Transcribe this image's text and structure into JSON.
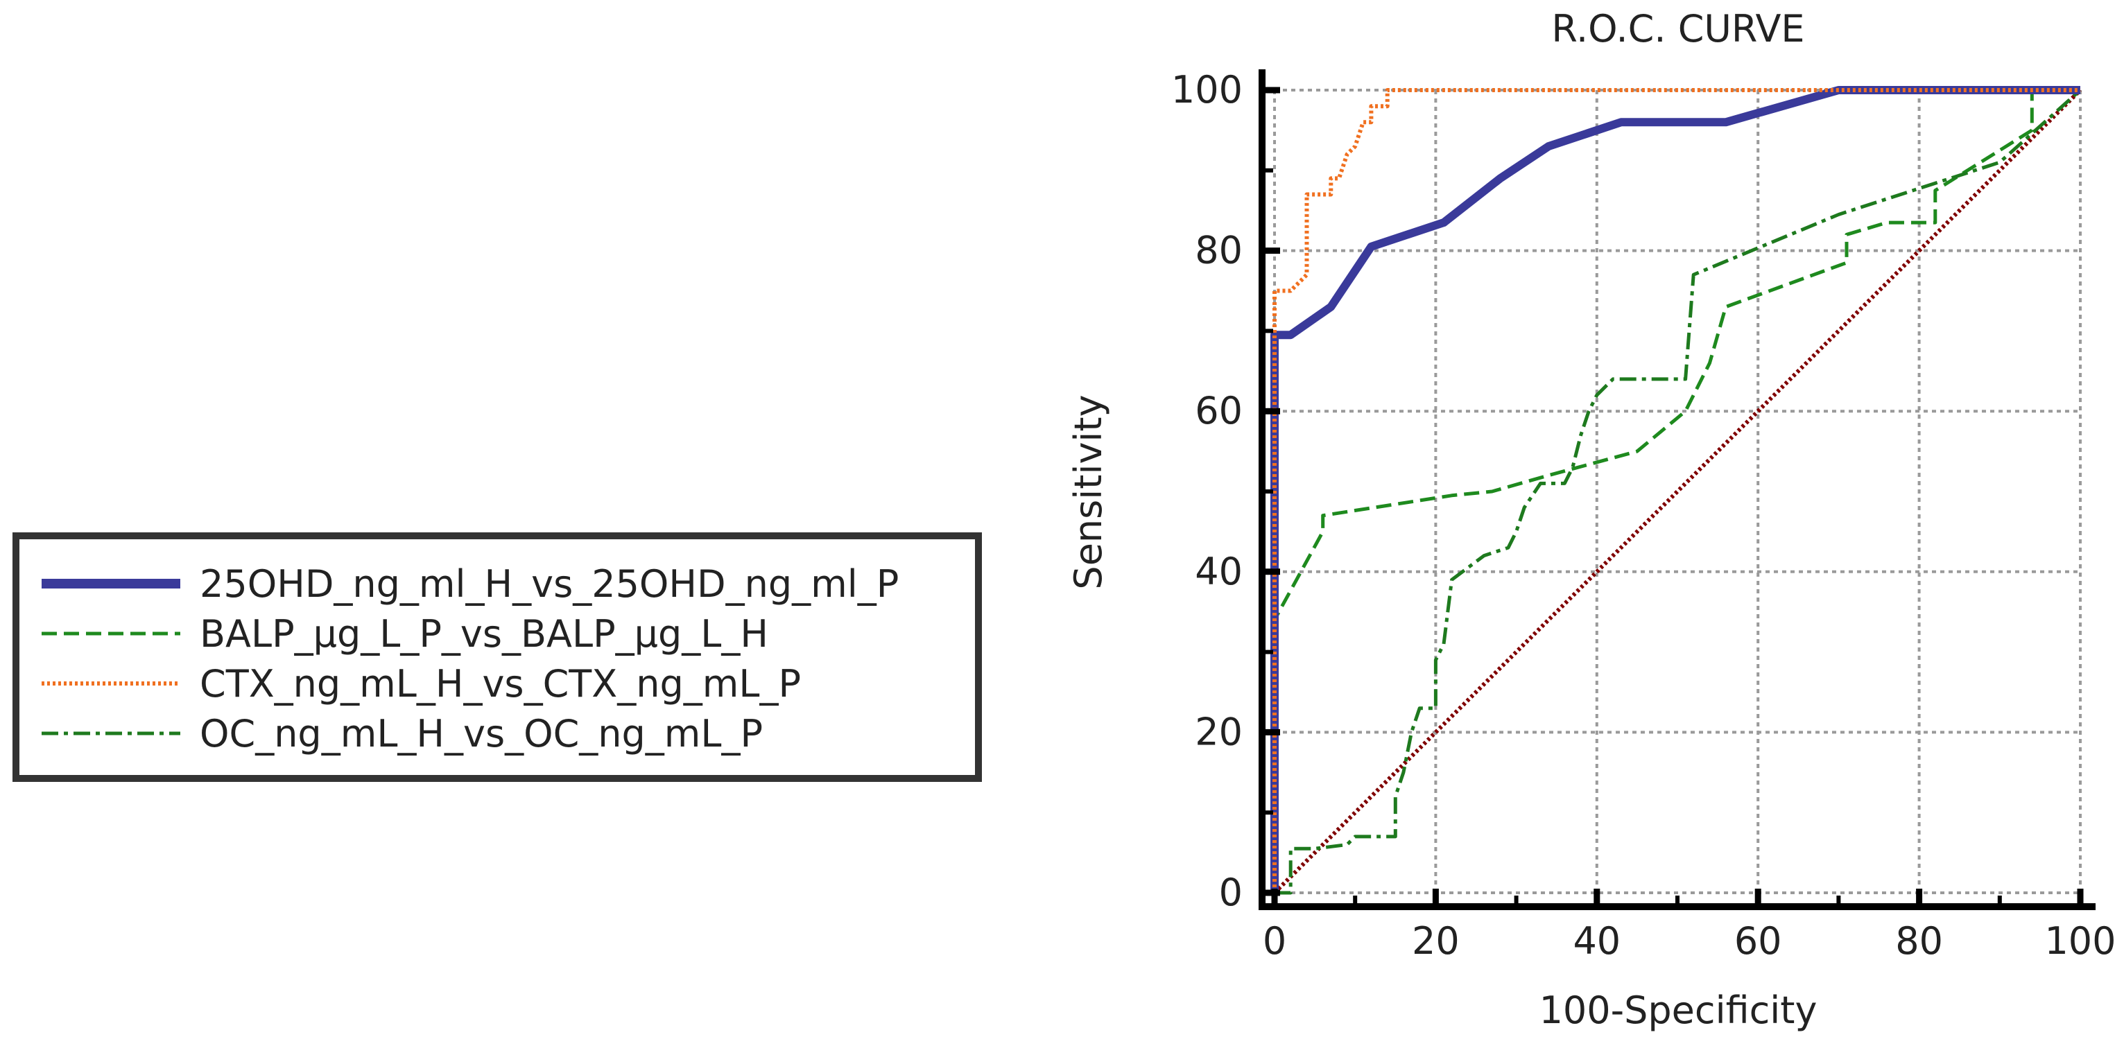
{
  "chart_data": {
    "type": "line",
    "title": "R.O.C.  CURVE",
    "xlabel": "100-Specificity",
    "ylabel": "Sensitivity",
    "xlim": [
      0,
      100
    ],
    "ylim": [
      0,
      100
    ],
    "xticks": [
      "0",
      "20",
      "40",
      "60",
      "80",
      "100"
    ],
    "yticks": [
      "0",
      "20",
      "40",
      "60",
      "80",
      "100"
    ],
    "grid": true,
    "legend_position": "left",
    "series": [
      {
        "name": "25OHD_ng_ml_H_vs_25OHD_ng_ml_P",
        "color": "#3a3a9a",
        "style": "solid",
        "x": [
          0,
          0,
          2,
          7,
          12,
          21,
          28,
          34,
          43,
          56,
          70,
          100
        ],
        "y": [
          0,
          69.5,
          69.5,
          73,
          80.5,
          83.5,
          89,
          93,
          96,
          96,
          100,
          100
        ]
      },
      {
        "name": "BALP_µg_L_P_vs_BALP_µg_L_H",
        "color": "#1e8a1e",
        "style": "dashed",
        "x": [
          0,
          0,
          0,
          6,
          6,
          22,
          27,
          34,
          45,
          51,
          54,
          56,
          71,
          71,
          76,
          80,
          82,
          82,
          94,
          94,
          100
        ],
        "y": [
          0,
          32.5,
          34,
          45,
          47,
          49.5,
          50,
          52,
          55,
          60,
          66,
          73,
          78.5,
          82,
          83.5,
          83.5,
          83.5,
          87.5,
          95,
          100,
          100
        ]
      },
      {
        "name": "CTX_ng_mL_H_vs_CTX_ng_mL_P",
        "color": "#f07020",
        "style": "dotted",
        "x": [
          0,
          0,
          2,
          3,
          4,
          4,
          7,
          7,
          8,
          9,
          10,
          11,
          12,
          12,
          14,
          14,
          100
        ],
        "y": [
          0,
          75,
          75,
          76,
          77,
          87,
          87,
          89,
          89,
          92,
          93,
          96,
          96,
          98,
          98,
          100,
          100
        ]
      },
      {
        "name": "OC_ng_mL_H_vs_OC_ng_mL_P",
        "color": "#1e7a1e",
        "style": "dashdot",
        "x": [
          0,
          2,
          2,
          5,
          5,
          9,
          10,
          12,
          15,
          15,
          16,
          17,
          18,
          20,
          20,
          21,
          22,
          26,
          29,
          30,
          31,
          33,
          34,
          36,
          37,
          38,
          39,
          40,
          42,
          51,
          52,
          70,
          90,
          100
        ],
        "y": [
          0,
          0,
          5.5,
          5.5,
          5.5,
          6,
          7,
          7,
          7,
          12,
          15,
          20,
          23,
          23,
          29,
          31,
          39,
          42,
          43,
          45,
          48,
          51,
          51,
          51,
          53,
          57,
          60,
          62,
          64,
          64,
          77,
          84.5,
          91,
          100
        ]
      },
      {
        "name": "",
        "color": "#800000",
        "style": "dotted",
        "x": [
          0,
          100
        ],
        "y": [
          0,
          100
        ]
      }
    ]
  }
}
